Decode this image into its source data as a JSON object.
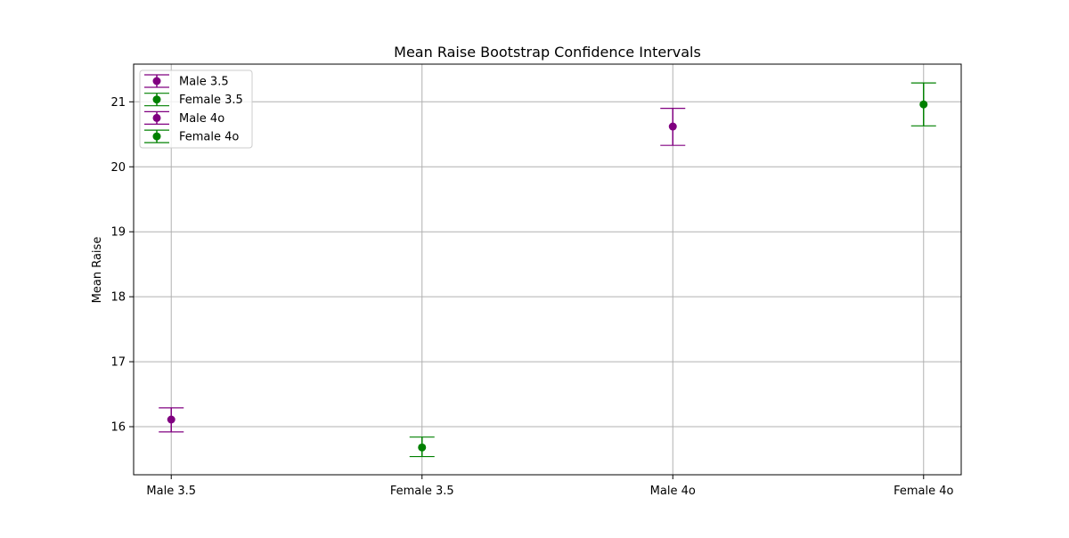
{
  "chart_data": {
    "type": "scatter",
    "title": "Mean Raise Bootstrap Confidence Intervals",
    "xlabel": "",
    "ylabel": "Mean Raise",
    "categories": [
      "Male 3.5",
      "Female 3.5",
      "Male 4o",
      "Female 4o"
    ],
    "ylim": [
      15.26,
      21.58
    ],
    "yticks": [
      16,
      17,
      18,
      19,
      20,
      21
    ],
    "grid": true,
    "legend_position": "top-left",
    "series": [
      {
        "name": "Male 3.5",
        "category": "Male 3.5",
        "mean": 16.11,
        "ci_low": 15.92,
        "ci_high": 16.29,
        "color": "#800080"
      },
      {
        "name": "Female 3.5",
        "category": "Female 3.5",
        "mean": 15.68,
        "ci_low": 15.54,
        "ci_high": 15.84,
        "color": "#008000"
      },
      {
        "name": "Male 4o",
        "category": "Male 4o",
        "mean": 20.62,
        "ci_low": 20.33,
        "ci_high": 20.9,
        "color": "#800080"
      },
      {
        "name": "Female 4o",
        "category": "Female 4o",
        "mean": 20.96,
        "ci_low": 20.63,
        "ci_high": 21.29,
        "color": "#008000"
      }
    ]
  }
}
